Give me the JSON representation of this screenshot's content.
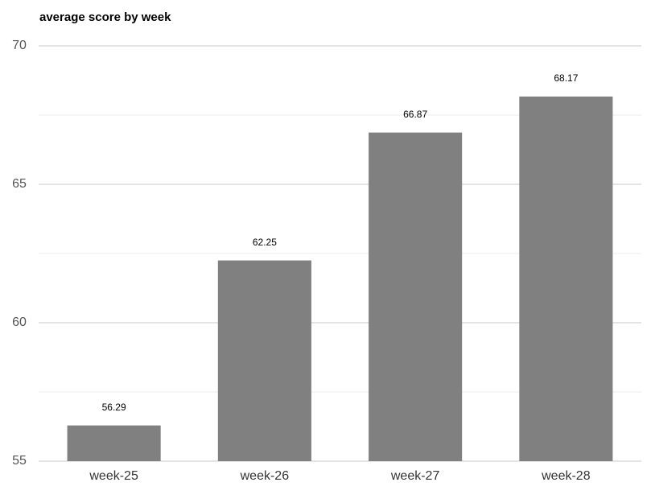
{
  "chart_data": {
    "type": "bar",
    "title": "average score by week",
    "categories": [
      "week-25",
      "week-26",
      "week-27",
      "week-28"
    ],
    "values": [
      56.29,
      62.25,
      66.87,
      68.17
    ],
    "color": "#808080",
    "ylim": [
      55,
      70
    ],
    "yticks": [
      55,
      60,
      65,
      70
    ],
    "minor_yticks": [
      57.5,
      62.5,
      67.5
    ],
    "grid": true
  }
}
